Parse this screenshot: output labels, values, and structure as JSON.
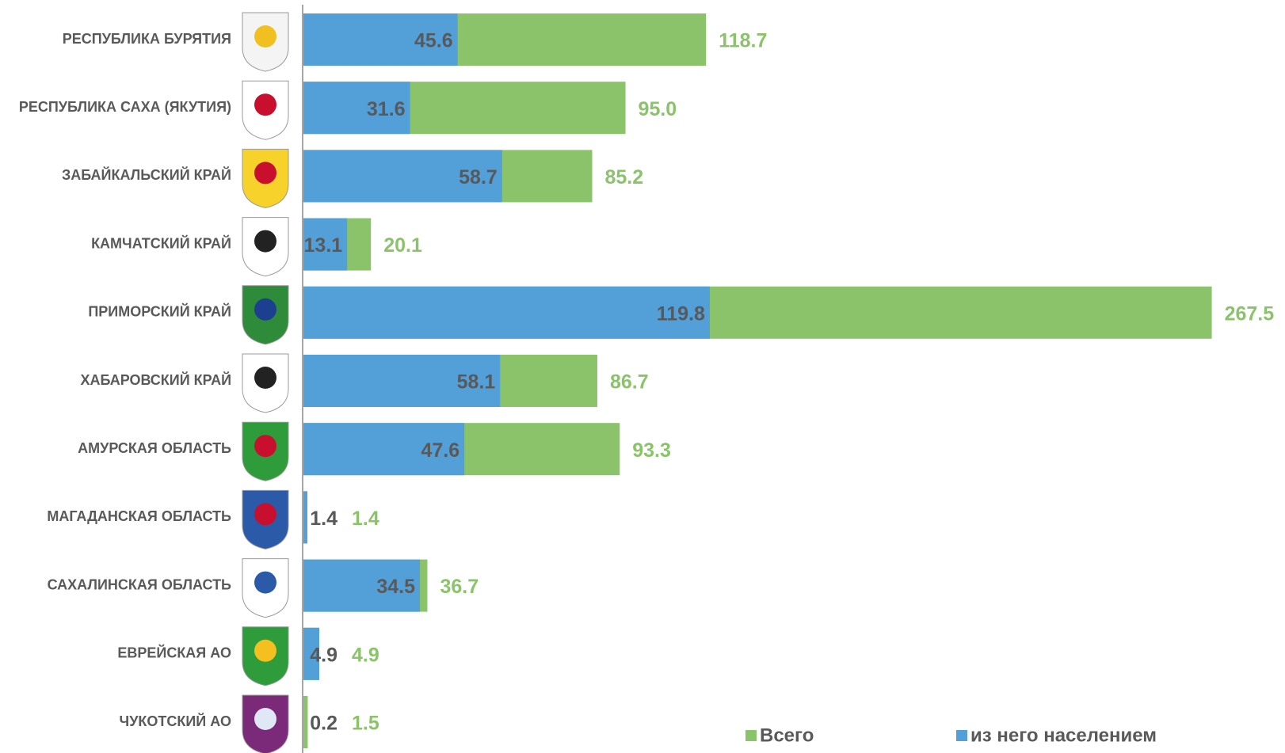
{
  "chart_data": {
    "type": "bar",
    "orientation": "horizontal",
    "overlap": true,
    "categories": [
      "РЕСПУБЛИКА БУРЯТИЯ",
      "РЕСПУБЛИКА САХА (ЯКУТИЯ)",
      "ЗАБАЙКАЛЬСКИЙ КРАЙ",
      "КАМЧАТСКИЙ КРАЙ",
      "ПРИМОРСКИЙ КРАЙ",
      "ХАБАРОВСКИЙ КРАЙ",
      "АМУРСКАЯ ОБЛАСТЬ",
      "МАГАДАНСКАЯ ОБЛАСТЬ",
      "САХАЛИНСКАЯ ОБЛАСТЬ",
      "ЕВРЕЙСКАЯ АО",
      "ЧУКОТСКИЙ АО"
    ],
    "series": [
      {
        "name": "Всего",
        "color": "#8ac36a",
        "values": [
          118.7,
          95.0,
          85.2,
          20.1,
          267.5,
          86.7,
          93.3,
          1.4,
          36.7,
          4.9,
          1.5
        ],
        "value_labels": [
          "118.7",
          "95.0",
          "85.2",
          "20.1",
          "267.5",
          "86.7",
          "93.3",
          "1.4",
          "36.7",
          "4.9",
          "1.5"
        ]
      },
      {
        "name": "из него населением",
        "color": "#539fd8",
        "values": [
          45.6,
          31.6,
          58.7,
          13.1,
          119.8,
          58.1,
          47.6,
          1.4,
          34.5,
          4.9,
          0.2
        ],
        "value_labels": [
          "45.6",
          "31.6",
          "58.7",
          "13.1",
          "119.8",
          "58.1",
          "47.6",
          "1.4",
          "34.5",
          "4.9",
          "0.2"
        ]
      }
    ],
    "xlim": [
      0,
      280
    ],
    "legend": "bottom-right"
  }
}
